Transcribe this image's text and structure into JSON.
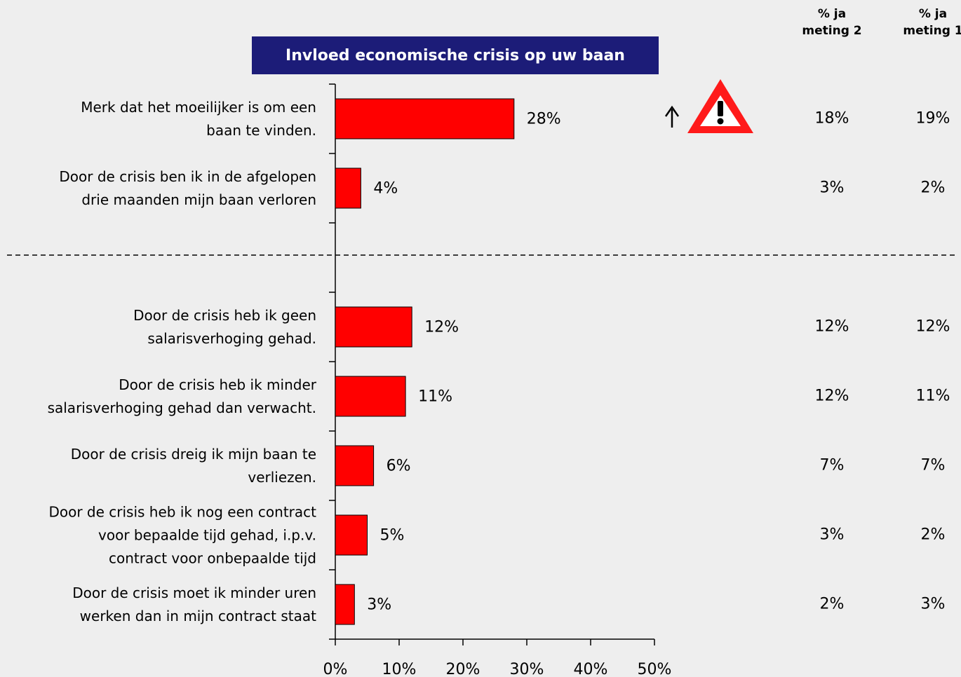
{
  "chart_data": {
    "type": "bar",
    "orientation": "horizontal",
    "title": "Invloed economische crisis op uw baan",
    "categories": [
      "Merk dat het moeilijker is om een\nbaan te vinden.",
      "Door de crisis ben ik in de afgelopen\ndrie maanden mijn baan verloren",
      null,
      "Door de crisis heb ik geen\nsalarisverhoging gehad.",
      "Door de crisis heb ik minder\nsalarisverhoging gehad dan verwacht.",
      "Door de crisis dreig ik mijn baan te\nverliezen.",
      "Door de crisis heb ik nog een contract\nvoor bepaalde tijd gehad, i.p.v.\ncontract voor onbepaalde tijd",
      "Door de crisis moet ik minder uren\nwerken dan in mijn contract staat"
    ],
    "values": [
      28,
      4,
      null,
      12,
      11,
      6,
      5,
      3
    ],
    "value_labels": [
      "28%",
      "4%",
      null,
      "12%",
      "11%",
      "6%",
      "5%",
      "3%"
    ],
    "color": "#ff0000",
    "xlim": [
      0,
      50
    ],
    "xticks": [
      {
        "value": 0,
        "label": "0%"
      },
      {
        "value": 10,
        "label": "10%"
      },
      {
        "value": 20,
        "label": "20%"
      },
      {
        "value": 30,
        "label": "30%"
      },
      {
        "value": 40,
        "label": "40%"
      },
      {
        "value": 50,
        "label": "50%"
      }
    ],
    "columns": [
      {
        "name": "% ja\nmeting 2",
        "values": [
          18,
          3,
          null,
          12,
          12,
          7,
          3,
          2
        ],
        "value_labels": [
          "18%",
          "3%",
          null,
          "12%",
          "12%",
          "7%",
          "3%",
          "2%"
        ]
      },
      {
        "name": "% ja\nmeting 1",
        "values": [
          19,
          2,
          null,
          12,
          11,
          7,
          2,
          3
        ],
        "value_labels": [
          "19%",
          "2%",
          null,
          "12%",
          "11%",
          "7%",
          "2%",
          "3%"
        ]
      }
    ]
  }
}
